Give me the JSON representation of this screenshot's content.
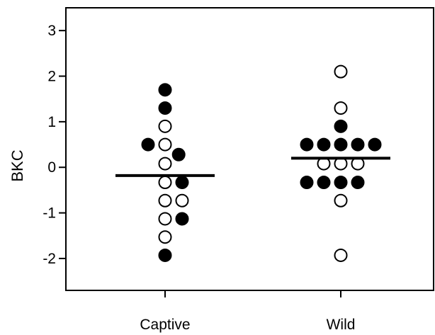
{
  "chart_data": {
    "type": "scatter",
    "title": "",
    "xlabel": "",
    "ylabel": "BKC",
    "ylim": [
      -2.7,
      3.5
    ],
    "yticks": [
      -2,
      -1,
      0,
      1,
      2,
      3
    ],
    "grid": false,
    "categories": [
      "Captive",
      "Wild"
    ],
    "colors": {
      "filled": "#000000",
      "open": "#ffffff",
      "stroke": "#000000"
    },
    "groups": [
      {
        "category": "Captive",
        "mean": -0.18,
        "points": [
          {
            "y": 1.7,
            "filled": true,
            "offset": 0
          },
          {
            "y": 1.3,
            "filled": true,
            "offset": 0
          },
          {
            "y": 0.9,
            "filled": false,
            "offset": 0
          },
          {
            "y": 0.5,
            "filled": true,
            "offset": -1
          },
          {
            "y": 0.5,
            "filled": false,
            "offset": 0
          },
          {
            "y": 0.28,
            "filled": true,
            "offset": 0.8
          },
          {
            "y": 0.08,
            "filled": false,
            "offset": 0
          },
          {
            "y": -0.33,
            "filled": false,
            "offset": 0
          },
          {
            "y": -0.33,
            "filled": true,
            "offset": 1
          },
          {
            "y": -0.73,
            "filled": false,
            "offset": 0
          },
          {
            "y": -0.73,
            "filled": false,
            "offset": 1
          },
          {
            "y": -1.13,
            "filled": false,
            "offset": 0
          },
          {
            "y": -1.13,
            "filled": true,
            "offset": 1
          },
          {
            "y": -1.53,
            "filled": false,
            "offset": 0
          },
          {
            "y": -1.93,
            "filled": true,
            "offset": 0
          }
        ]
      },
      {
        "category": "Wild",
        "mean": 0.2,
        "points": [
          {
            "y": 2.1,
            "filled": false,
            "offset": 0
          },
          {
            "y": 1.3,
            "filled": false,
            "offset": 0
          },
          {
            "y": 0.9,
            "filled": true,
            "offset": 0
          },
          {
            "y": 0.5,
            "filled": true,
            "offset": -2
          },
          {
            "y": 0.5,
            "filled": true,
            "offset": -1
          },
          {
            "y": 0.5,
            "filled": true,
            "offset": 0
          },
          {
            "y": 0.5,
            "filled": true,
            "offset": 1
          },
          {
            "y": 0.5,
            "filled": true,
            "offset": 2
          },
          {
            "y": 0.08,
            "filled": false,
            "offset": -1
          },
          {
            "y": 0.08,
            "filled": false,
            "offset": 0
          },
          {
            "y": 0.08,
            "filled": false,
            "offset": 1
          },
          {
            "y": -0.33,
            "filled": true,
            "offset": -2
          },
          {
            "y": -0.33,
            "filled": true,
            "offset": -1
          },
          {
            "y": -0.33,
            "filled": true,
            "offset": 0
          },
          {
            "y": -0.33,
            "filled": true,
            "offset": 1
          },
          {
            "y": -0.73,
            "filled": false,
            "offset": 0
          },
          {
            "y": -1.93,
            "filled": false,
            "offset": 0
          }
        ]
      }
    ]
  }
}
